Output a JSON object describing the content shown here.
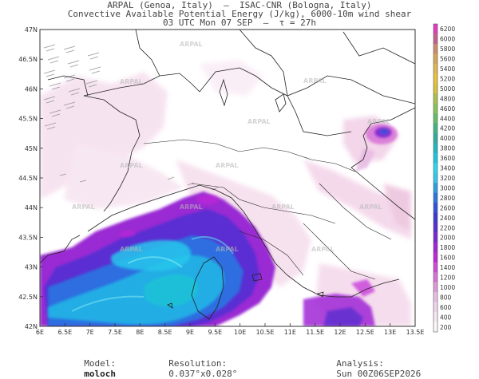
{
  "header": {
    "line1": "ARPAL (Genoa, Italy)  –  ISAC-CNR (Bologna, Italy)",
    "line2": "Convective Available Potential Energy (J/kg), 6000-10m wind shear",
    "line3": "03 UTC Mon 07 SEP  –  τ = 27h"
  },
  "map": {
    "lat_labels": [
      "47N",
      "46.5N",
      "46N",
      "45.5N",
      "45N",
      "44.5N",
      "44N",
      "43.5N",
      "43N",
      "42.5N",
      "42N"
    ],
    "lon_labels": [
      "6E",
      "6.5E",
      "7E",
      "7.5E",
      "8E",
      "8.5E",
      "9E",
      "9.5E",
      "10E",
      "10.5E",
      "11E",
      "11.5E",
      "12E",
      "12.5E",
      "13E",
      "13.5E"
    ],
    "watermark": "ARPAL",
    "lat_range": [
      42,
      47
    ],
    "lon_range": [
      6,
      13.5
    ]
  },
  "colorbar": {
    "levels": [
      "6200",
      "6000",
      "5800",
      "5600",
      "5400",
      "5200",
      "5000",
      "4800",
      "4600",
      "4400",
      "4200",
      "4000",
      "3800",
      "3600",
      "3400",
      "3200",
      "3000",
      "2800",
      "2600",
      "2400",
      "2200",
      "2000",
      "1800",
      "1600",
      "1400",
      "1200",
      "1000",
      "800",
      "600",
      "400",
      "200"
    ],
    "colors": [
      "#e43bc0",
      "#c65f8c",
      "#cf8a6e",
      "#d7a458",
      "#e2b550",
      "#ecc13a",
      "#d7c23a",
      "#a9c24a",
      "#88c259",
      "#64bd67",
      "#42b486",
      "#2fae9e",
      "#1fb8c2",
      "#1ac6e0",
      "#2ad7ee",
      "#32c7ee",
      "#2a9fe3",
      "#2a76dd",
      "#3450d7",
      "#3f38d0",
      "#5a2dd0",
      "#7d26d3",
      "#a026d6",
      "#c126d8",
      "#d04ad6",
      "#d772d6",
      "#df9ad8",
      "#e8bde3",
      "#f0d6ec",
      "#f7e8f4",
      "#fdf6fb"
    ]
  },
  "footer": {
    "model_label": "Model:",
    "model_value": "moloch",
    "resolution_label": "Resolution:",
    "resolution_value": "0.037°x0.028°",
    "analysis_label": "Analysis:",
    "analysis_value": "Sun 00Z06SEP2026"
  }
}
